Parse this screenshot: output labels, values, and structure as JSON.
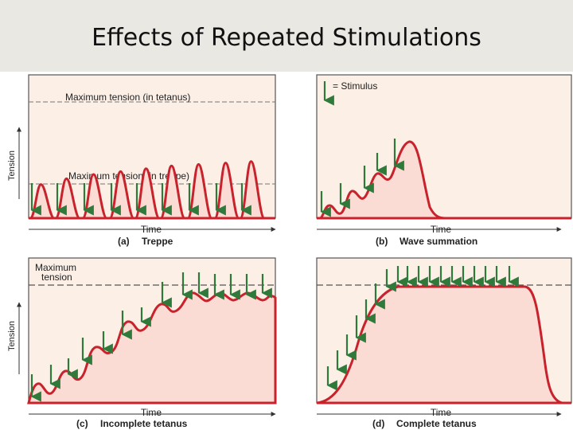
{
  "slide": {
    "title": "Effects of Repeated Stimulations"
  },
  "colors": {
    "fill": "#fadcd4",
    "curve": "#c8222c",
    "arrow": "#2f7a3a",
    "axis": "#333333",
    "dash": "#777777"
  },
  "panels": {
    "a": {
      "caption_letter": "(a)",
      "caption_text": "Treppe",
      "xlabel": "Time",
      "ylabel": "Tension",
      "line_max_tetanus": "Maximum tension (in tetanus)",
      "line_max_treppe": "Maximum tension (in treppe)",
      "twitch_peaks": [
        0.18,
        0.22,
        0.25,
        0.27,
        0.29,
        0.31,
        0.32,
        0.33,
        0.34
      ],
      "stimuli": 9
    },
    "b": {
      "caption_letter": "(b)",
      "caption_text": "Wave summation",
      "xlabel": "Time",
      "legend_label": "= Stimulus",
      "stimuli": 5
    },
    "c": {
      "caption_letter": "(c)",
      "caption_text": "Incomplete tetanus",
      "xlabel": "Time",
      "ylabel": "Tension",
      "line_max_label_1": "Maximum",
      "line_max_label_2": "tension",
      "stimuli": 14
    },
    "d": {
      "caption_letter": "(d)",
      "caption_text": "Complete tetanus",
      "xlabel": "Time",
      "stimuli": 18
    }
  }
}
